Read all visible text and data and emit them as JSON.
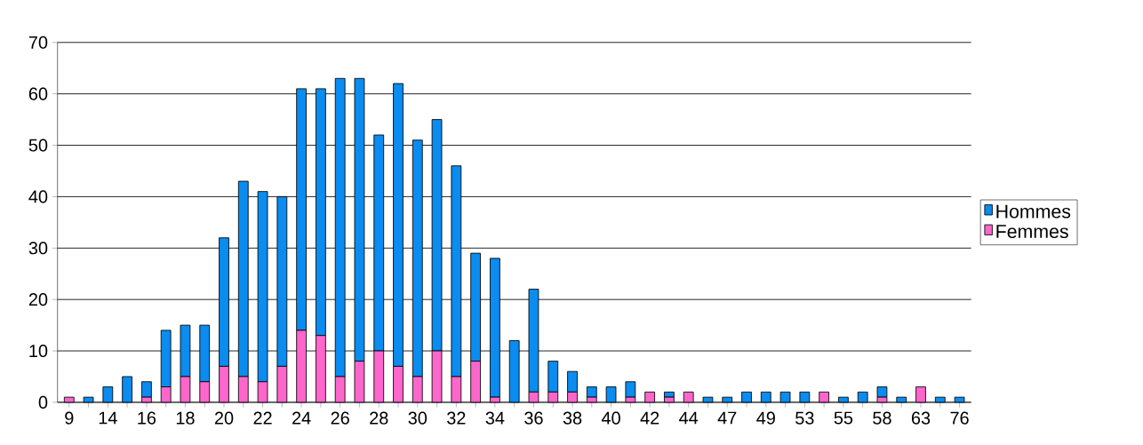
{
  "chart_data": {
    "type": "bar",
    "stacked": true,
    "categories": [
      "9",
      null,
      "14",
      null,
      "16",
      null,
      "18",
      null,
      "20",
      null,
      "22",
      null,
      "24",
      null,
      "26",
      null,
      "28",
      null,
      "30",
      null,
      "32",
      null,
      "34",
      null,
      "36",
      null,
      "38",
      null,
      "40",
      null,
      "42",
      null,
      "44",
      null,
      "47",
      null,
      "49",
      null,
      "53",
      null,
      "55",
      null,
      "58",
      null,
      "63",
      null,
      "76"
    ],
    "series": [
      {
        "name": "Femmes",
        "color": "#ff66cc",
        "values": [
          1,
          0,
          0,
          0,
          1,
          3,
          5,
          4,
          7,
          5,
          4,
          7,
          14,
          13,
          5,
          8,
          10,
          7,
          5,
          10,
          5,
          8,
          1,
          0,
          2,
          2,
          2,
          1,
          0,
          1,
          2,
          1,
          2,
          0,
          0,
          0,
          0,
          0,
          0,
          2,
          0,
          0,
          1,
          0,
          3,
          0,
          0
        ]
      },
      {
        "name": "Hommes",
        "color": "#0a8cf0",
        "values": [
          0,
          1,
          3,
          5,
          3,
          11,
          10,
          11,
          25,
          38,
          37,
          33,
          47,
          48,
          58,
          55,
          42,
          55,
          46,
          45,
          41,
          21,
          27,
          12,
          20,
          6,
          4,
          2,
          3,
          3,
          0,
          1,
          0,
          1,
          1,
          2,
          2,
          2,
          2,
          0,
          1,
          2,
          2,
          1,
          0,
          1,
          1
        ]
      }
    ],
    "ylim": [
      0,
      70
    ],
    "yticks": [
      0,
      10,
      20,
      30,
      40,
      50,
      60,
      70
    ],
    "grid": "y",
    "legend": "right"
  }
}
